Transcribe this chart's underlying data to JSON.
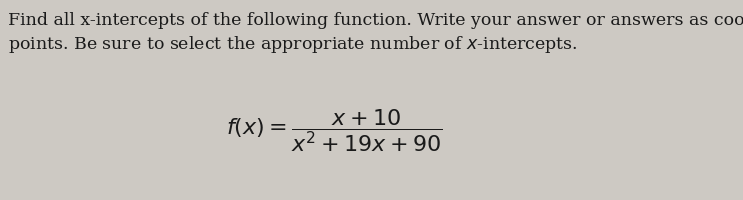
{
  "line1": "Find all x-intercepts of the following function. Write your answer or answers as coordinate",
  "line2": "points. Be sure to select the appropriate number of $x$-intercepts.",
  "formula": "$f(x) = \\dfrac{x + 10}{x^2 + 19x + 90}$",
  "bg_color": "#cdc9c3",
  "text_color": "#1a1a1a",
  "font_size_body": 12.5,
  "font_size_formula": 16,
  "fig_width": 7.43,
  "fig_height": 2.01,
  "dpi": 100
}
